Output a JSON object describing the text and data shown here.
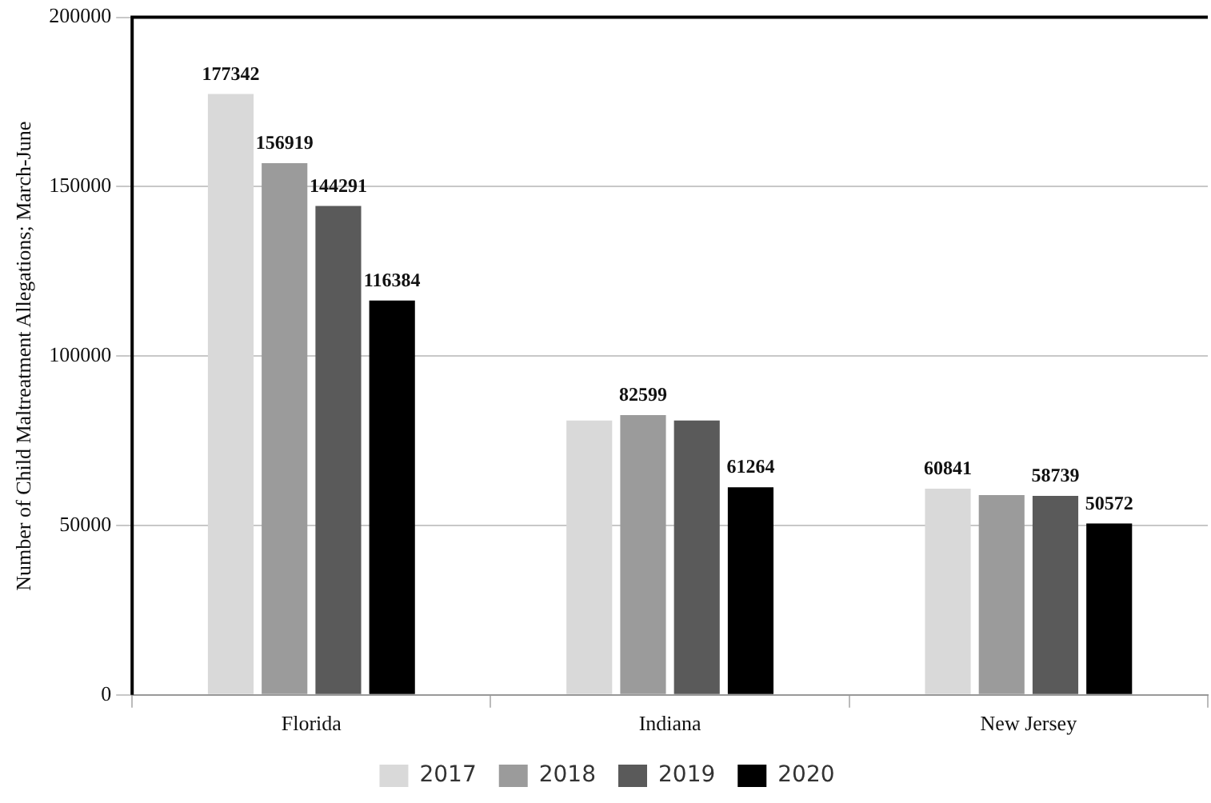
{
  "chart_data": {
    "type": "bar",
    "ylabel": "Number of Child Maltreatment Allegations; March-June",
    "categories": [
      "Florida",
      "Indiana",
      "New Jersey"
    ],
    "series": [
      {
        "name": "2017",
        "color": "#d9d9d9",
        "values": [
          177342,
          81000,
          60841
        ],
        "value_labels": [
          "177342",
          null,
          "60841"
        ]
      },
      {
        "name": "2018",
        "color": "#9b9b9b",
        "values": [
          156919,
          82599,
          59000
        ],
        "value_labels": [
          "156919",
          "82599",
          null
        ]
      },
      {
        "name": "2019",
        "color": "#5a5a5a",
        "values": [
          144291,
          81000,
          58739
        ],
        "value_labels": [
          "144291",
          null,
          "58739"
        ]
      },
      {
        "name": "2020",
        "color": "#000000",
        "values": [
          116384,
          61264,
          50572
        ],
        "value_labels": [
          "116384",
          "61264",
          "50572"
        ]
      }
    ],
    "ylim": [
      0,
      200000
    ],
    "yticks": [
      0,
      50000,
      100000,
      150000,
      200000
    ],
    "grid": "y",
    "legend": "bottom"
  }
}
